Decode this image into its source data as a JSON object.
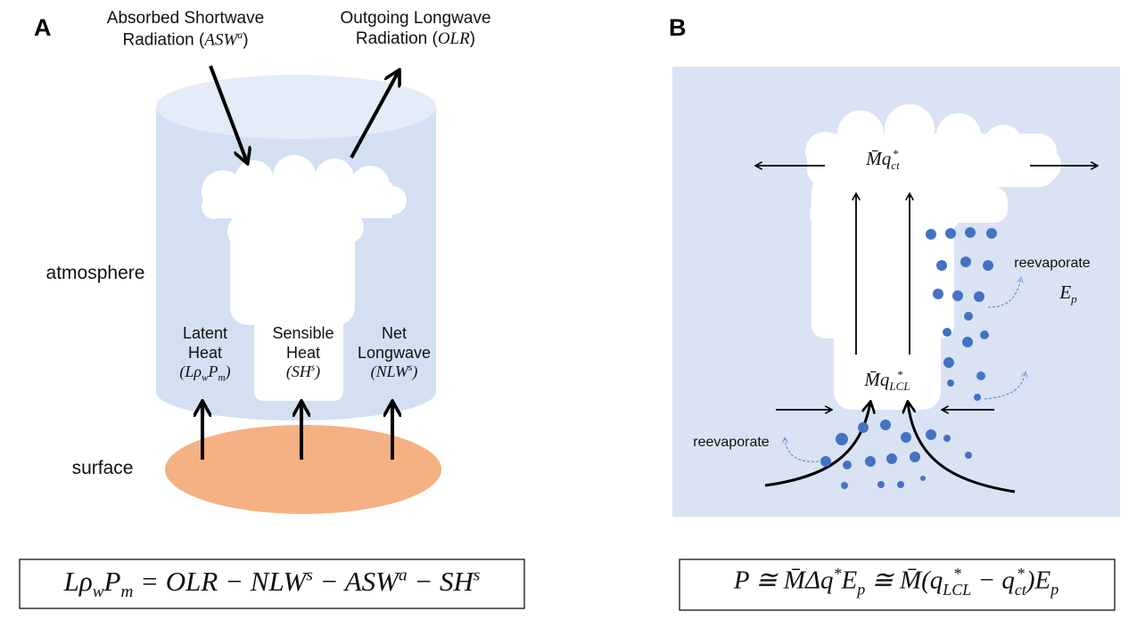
{
  "panel_a": {
    "letter": "A",
    "shortwave": [
      [
        {
          "plain": "Absorbed Shortwave"
        }
      ],
      [
        {
          "plain": "Radiation ("
        },
        {
          "math": "ASW",
          "sup": "a"
        },
        {
          "plain": ")"
        }
      ]
    ],
    "outgoing": [
      [
        {
          "plain": "Outgoing Longwave"
        }
      ],
      [
        {
          "plain": "Radiation ("
        },
        {
          "math": "OLR"
        },
        {
          "plain": ")"
        }
      ]
    ],
    "atmosphere": [
      [
        {
          "plain": "atmosphere"
        }
      ]
    ],
    "surface": [
      [
        {
          "plain": "surface"
        }
      ]
    ],
    "latent": [
      [
        {
          "plain": "Latent"
        }
      ],
      [
        {
          "plain": "Heat"
        }
      ],
      [
        {
          "math": "(Lρ",
          "sub": "w"
        },
        {
          "math": "P",
          "sub": "m"
        },
        {
          "math": ")"
        }
      ]
    ],
    "sensible": [
      [
        {
          "plain": "Sensible"
        }
      ],
      [
        {
          "plain": "Heat"
        }
      ],
      [
        {
          "math": "(SH",
          "sup": "s"
        },
        {
          "math": ")"
        }
      ]
    ],
    "net_longwave": [
      [
        {
          "plain": "Net"
        }
      ],
      [
        {
          "plain": "Longwave"
        }
      ],
      [
        {
          "math": "(NLW",
          "sup": "s"
        },
        {
          "math": ")"
        }
      ]
    ],
    "equation": [
      [
        {
          "math": "Lρ",
          "sub": "w"
        },
        {
          "math": "P",
          "sub": "m"
        },
        {
          "math": " = OLR − NLW",
          "sup": "s"
        },
        {
          "math": " − ASW",
          "sup": "a"
        },
        {
          "math": " − SH",
          "sup": "s"
        }
      ]
    ]
  },
  "panel_b": {
    "letter": "B",
    "top_flux": [
      [
        {
          "math": "M̄q",
          "sup": "*",
          "sub": "ct"
        }
      ]
    ],
    "lcl_flux": [
      [
        {
          "math": "M̄q",
          "sup": "*",
          "sub": "LCL"
        }
      ]
    ],
    "reevaporate_right": [
      [
        {
          "plain": "reevaporate"
        }
      ]
    ],
    "efficiency": [
      [
        {
          "math": "E",
          "sub": "p"
        }
      ]
    ],
    "reevaporate_left": [
      [
        {
          "plain": "reevaporate"
        }
      ]
    ],
    "equation": [
      [
        {
          "math": "P ≅ M̄Δq",
          "sup": "*"
        },
        {
          "math": "E",
          "sub": "p"
        },
        {
          "math": " ≅ M̄(q",
          "sup": "*",
          "sub": "LCL"
        },
        {
          "math": " − q",
          "sup": "*",
          "sub": "ct"
        },
        {
          "math": ")E",
          "sub": "p"
        }
      ]
    ]
  }
}
